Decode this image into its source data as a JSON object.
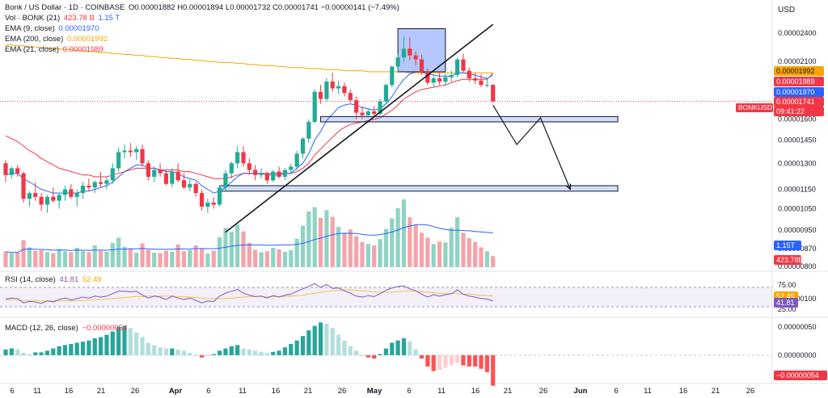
{
  "header": {
    "title": "Bonk / US Dollar · 1D · COINBASE",
    "ohlc": "O0.00001882 H0.00001894 L0.00001732 C0.00001741 −0.00000141 (−7.49%)",
    "vol_label": "Vol · BONK (21)",
    "vol_val1": "423.78 B",
    "vol_val2": "1.15 T",
    "ema9_label": "EMA (9, close)",
    "ema9_val": "0.00001970",
    "ema200_label": "EMA (200, close)",
    "ema200_val": "0.00001992",
    "ema21_label": "EMA (21, close)",
    "ema21_val": "0.00001989",
    "currency": "USD"
  },
  "price_axis": {
    "ticks": [
      "0.00002400",
      "0.00002100",
      "0.00001800",
      "0.00001600",
      "0.00001450",
      "0.00001300",
      "0.00001150",
      "0.00001050",
      "0.00000950",
      "0.00000870",
      "0.00000800"
    ],
    "tags": [
      {
        "text": "0.00001992",
        "color": "#f7a600",
        "name": "ema200-price-tag"
      },
      {
        "text": "0.00001989",
        "color": "#f23645",
        "name": "ema21-price-tag"
      },
      {
        "text": "0.00001970",
        "color": "#2962ff",
        "name": "ema9-price-tag"
      },
      {
        "text": "0.00001741",
        "color": "#f23645",
        "name": "last-price-tag"
      },
      {
        "text": "09:41:22",
        "color": "#f23645",
        "name": "countdown-tag"
      },
      {
        "text": "1.15T",
        "color": "#2962ff",
        "name": "vol-ma-tag"
      },
      {
        "text": "423.78B",
        "color": "#f23645",
        "name": "vol-tag"
      }
    ],
    "symbol_tag": "BONKUSD"
  },
  "rsi": {
    "label": "RSI (14, close)",
    "val1": "41.81",
    "val2": "52.49",
    "ticks": [
      "75.00",
      "25.00"
    ],
    "tags": [
      {
        "text": "52.49",
        "color": "#f7a600"
      },
      {
        "text": "41.81",
        "color": "#7e57c2"
      }
    ]
  },
  "macd": {
    "label": "MACD (12, 26, close)",
    "val": "−0.00000054",
    "ticks": [
      "0.00000100",
      "0.00000050",
      "0.00000000"
    ],
    "tag": "−0.00000054"
  },
  "time_axis": {
    "labels": [
      "6",
      "11",
      "16",
      "21",
      "26",
      "Apr",
      "6",
      "11",
      "16",
      "21",
      "26",
      "May",
      "6",
      "11",
      "16",
      "21",
      "26",
      "Jun",
      "6",
      "11",
      "16",
      "21",
      "26"
    ]
  },
  "chart_data": {
    "type": "candlestick",
    "title": "Bonk / US Dollar · 1D · COINBASE",
    "currency": "USD",
    "candles": [
      [
        1.3e-05,
        1.32e-05,
        1.19e-05,
        1.23e-05
      ],
      [
        1.23e-05,
        1.28e-05,
        1.21e-05,
        1.27e-05
      ],
      [
        1.27e-05,
        1.29e-05,
        1.22e-05,
        1.24e-05
      ],
      [
        1.24e-05,
        1.25e-05,
        1.08e-05,
        1.1e-05
      ],
      [
        1.1e-05,
        1.14e-05,
        1.06e-05,
        1.13e-05
      ],
      [
        1.13e-05,
        1.19e-05,
        1.09e-05,
        1.11e-05
      ],
      [
        1.11e-05,
        1.13e-05,
        1.04e-05,
        1.07e-05
      ],
      [
        1.07e-05,
        1.12e-05,
        1.03e-05,
        1.11e-05
      ],
      [
        1.11e-05,
        1.16e-05,
        1.08e-05,
        1.09e-05
      ],
      [
        1.09e-05,
        1.13e-05,
        1.05e-05,
        1.12e-05
      ],
      [
        1.12e-05,
        1.17e-05,
        1.09e-05,
        1.15e-05
      ],
      [
        1.15e-05,
        1.18e-05,
        1.1e-05,
        1.11e-05
      ],
      [
        1.11e-05,
        1.15e-05,
        1.06e-05,
        1.13e-05
      ],
      [
        1.13e-05,
        1.19e-05,
        1.1e-05,
        1.17e-05
      ],
      [
        1.17e-05,
        1.21e-05,
        1.14e-05,
        1.16e-05
      ],
      [
        1.16e-05,
        1.2e-05,
        1.13e-05,
        1.19e-05
      ],
      [
        1.19e-05,
        1.25e-05,
        1.16e-05,
        1.18e-05
      ],
      [
        1.18e-05,
        1.22e-05,
        1.15e-05,
        1.2e-05
      ],
      [
        1.2e-05,
        1.3e-05,
        1.18e-05,
        1.27e-05
      ],
      [
        1.27e-05,
        1.4e-05,
        1.25e-05,
        1.37e-05
      ],
      [
        1.37e-05,
        1.42e-05,
        1.33e-05,
        1.38e-05
      ],
      [
        1.38e-05,
        1.43e-05,
        1.34e-05,
        1.37e-05
      ],
      [
        1.37e-05,
        1.41e-05,
        1.32e-05,
        1.39e-05
      ],
      [
        1.39e-05,
        1.42e-05,
        1.28e-05,
        1.3e-05
      ],
      [
        1.3e-05,
        1.32e-05,
        1.2e-05,
        1.22e-05
      ],
      [
        1.22e-05,
        1.28e-05,
        1.19e-05,
        1.26e-05
      ],
      [
        1.26e-05,
        1.3e-05,
        1.22e-05,
        1.24e-05
      ],
      [
        1.24e-05,
        1.26e-05,
        1.17e-05,
        1.18e-05
      ],
      [
        1.18e-05,
        1.27e-05,
        1.16e-05,
        1.25e-05
      ],
      [
        1.25e-05,
        1.3e-05,
        1.19e-05,
        1.2e-05
      ],
      [
        1.2e-05,
        1.24e-05,
        1.15e-05,
        1.16e-05
      ],
      [
        1.16e-05,
        1.21e-05,
        1.14e-05,
        1.18e-05
      ],
      [
        1.18e-05,
        1.19e-05,
        1.11e-05,
        1.13e-05
      ],
      [
        1.13e-05,
        1.15e-05,
        1.04e-05,
        1.06e-05
      ],
      [
        1.06e-05,
        1.1e-05,
        1.03e-05,
        1.08e-05
      ],
      [
        1.08e-05,
        1.11e-05,
        1.05e-05,
        1.07e-05
      ],
      [
        1.07e-05,
        1.17e-05,
        1.06e-05,
        1.16e-05
      ],
      [
        1.16e-05,
        1.26e-05,
        1.14e-05,
        1.24e-05
      ],
      [
        1.24e-05,
        1.31e-05,
        1.21e-05,
        1.3e-05
      ],
      [
        1.3e-05,
        1.41e-05,
        1.27e-05,
        1.37e-05
      ],
      [
        1.37e-05,
        1.41e-05,
        1.28e-05,
        1.3e-05
      ],
      [
        1.3e-05,
        1.33e-05,
        1.23e-05,
        1.26e-05
      ],
      [
        1.26e-05,
        1.29e-05,
        1.2e-05,
        1.23e-05
      ],
      [
        1.23e-05,
        1.27e-05,
        1.21e-05,
        1.24e-05
      ],
      [
        1.24e-05,
        1.25e-05,
        1.18e-05,
        1.2e-05
      ],
      [
        1.2e-05,
        1.26e-05,
        1.19e-05,
        1.25e-05
      ],
      [
        1.25e-05,
        1.28e-05,
        1.21e-05,
        1.22e-05
      ],
      [
        1.22e-05,
        1.27e-05,
        1.2e-05,
        1.26e-05
      ],
      [
        1.26e-05,
        1.3e-05,
        1.24e-05,
        1.28e-05
      ],
      [
        1.28e-05,
        1.38e-05,
        1.26e-05,
        1.36e-05
      ],
      [
        1.36e-05,
        1.47e-05,
        1.33e-05,
        1.46e-05
      ],
      [
        1.46e-05,
        1.6e-05,
        1.43e-05,
        1.58e-05
      ],
      [
        1.58e-05,
        1.84e-05,
        1.57e-05,
        1.82e-05
      ],
      [
        1.82e-05,
        1.88e-05,
        1.72e-05,
        1.76e-05
      ],
      [
        1.76e-05,
        1.94e-05,
        1.74e-05,
        1.91e-05
      ],
      [
        1.91e-05,
        1.99e-05,
        1.82e-05,
        1.85e-05
      ],
      [
        1.85e-05,
        1.92e-05,
        1.8e-05,
        1.87e-05
      ],
      [
        1.87e-05,
        1.9e-05,
        1.78e-05,
        1.81e-05
      ],
      [
        1.81e-05,
        1.84e-05,
        1.73e-05,
        1.75e-05
      ],
      [
        1.75e-05,
        1.78e-05,
        1.6e-05,
        1.65e-05
      ],
      [
        1.65e-05,
        1.7e-05,
        1.6e-05,
        1.63e-05
      ],
      [
        1.63e-05,
        1.68e-05,
        1.61e-05,
        1.66e-05
      ],
      [
        1.66e-05,
        1.7e-05,
        1.62e-05,
        1.64e-05
      ],
      [
        1.64e-05,
        1.76e-05,
        1.63e-05,
        1.74e-05
      ],
      [
        1.74e-05,
        1.89e-05,
        1.72e-05,
        1.88e-05
      ],
      [
        1.88e-05,
        2.06e-05,
        1.86e-05,
        2.05e-05
      ],
      [
        2.05e-05,
        2.18e-05,
        1.99e-05,
        2.14e-05
      ],
      [
        2.14e-05,
        2.36e-05,
        2.09e-05,
        2.23e-05
      ],
      [
        2.23e-05,
        2.35e-05,
        2.11e-05,
        2.16e-05
      ],
      [
        2.16e-05,
        2.2e-05,
        2.06e-05,
        2.12e-05
      ],
      [
        2.12e-05,
        2.17e-05,
        1.97e-05,
        2e-05
      ],
      [
        2e-05,
        2.03e-05,
        1.88e-05,
        1.9e-05
      ],
      [
        1.9e-05,
        1.97e-05,
        1.86e-05,
        1.94e-05
      ],
      [
        1.94e-05,
        1.99e-05,
        1.88e-05,
        1.91e-05
      ],
      [
        1.91e-05,
        1.98e-05,
        1.87e-05,
        1.95e-05
      ],
      [
        1.95e-05,
        2.01e-05,
        1.91e-05,
        1.97e-05
      ],
      [
        1.97e-05,
        2.14e-05,
        1.95e-05,
        2.12e-05
      ],
      [
        2.12e-05,
        2.18e-05,
        1.99e-05,
        2.01e-05
      ],
      [
        2.01e-05,
        2.04e-05,
        1.91e-05,
        1.94e-05
      ],
      [
        1.94e-05,
        1.99e-05,
        1.89e-05,
        1.92e-05
      ],
      [
        1.92e-05,
        1.98e-05,
        1.86e-05,
        1.88e-05
      ],
      [
        1.88e-05,
        1.94e-05,
        1.86e-05,
        1.88e-05
      ],
      [
        1.88e-05,
        1.89e-05,
        1.73e-05,
        1.74e-05
      ]
    ],
    "volume_bars": [
      3.2,
      2.9,
      3.0,
      5.6,
      4.1,
      3.4,
      3.5,
      3.1,
      2.9,
      3.8,
      3.3,
      3.1,
      4.0,
      3.3,
      3.1,
      4.5,
      3.4,
      3.2,
      5.0,
      6.1,
      4.2,
      3.9,
      3.0,
      4.9,
      3.6,
      3.0,
      2.9,
      3.4,
      3.2,
      4.7,
      3.3,
      3.6,
      4.5,
      3.9,
      2.8,
      3.4,
      6.2,
      8.1,
      7.3,
      8.8,
      7.4,
      5.0,
      3.6,
      3.1,
      3.3,
      4.0,
      3.7,
      3.2,
      3.5,
      5.9,
      8.6,
      11.5,
      12.4,
      10.2,
      11.8,
      10.4,
      8.3,
      7.1,
      7.8,
      6.4,
      5.2,
      4.8,
      4.5,
      5.8,
      7.9,
      10.1,
      12.2,
      14.0,
      10.3,
      8.7,
      7.1,
      6.1,
      4.8,
      5.3,
      5.1,
      8.2,
      10.3,
      7.1,
      6.0,
      5.2,
      4.1,
      3.3,
      2.3
    ],
    "ema9": [
      1.23e-05,
      1.24e-05,
      1.24e-05,
      1.21e-05,
      1.19e-05,
      1.17e-05,
      1.15e-05,
      1.14e-05,
      1.13e-05,
      1.13e-05,
      1.13e-05,
      1.13e-05,
      1.13e-05,
      1.14e-05,
      1.14e-05,
      1.15e-05,
      1.16e-05,
      1.17e-05,
      1.19e-05,
      1.22e-05,
      1.25e-05,
      1.27e-05,
      1.29e-05,
      1.29e-05,
      1.27e-05,
      1.27e-05,
      1.26e-05,
      1.25e-05,
      1.25e-05,
      1.24e-05,
      1.22e-05,
      1.21e-05,
      1.2e-05,
      1.17e-05,
      1.15e-05,
      1.13e-05,
      1.14e-05,
      1.16e-05,
      1.19e-05,
      1.22e-05,
      1.24e-05,
      1.24e-05,
      1.24e-05,
      1.24e-05,
      1.23e-05,
      1.23e-05,
      1.23e-05,
      1.24e-05,
      1.24e-05,
      1.27e-05,
      1.3e-05,
      1.36e-05,
      1.45e-05,
      1.51e-05,
      1.59e-05,
      1.64e-05,
      1.69e-05,
      1.71e-05,
      1.72e-05,
      1.71e-05,
      1.69e-05,
      1.68e-05,
      1.67e-05,
      1.68e-05,
      1.72e-05,
      1.78e-05,
      1.86e-05,
      1.93e-05,
      1.98e-05,
      2e-05,
      2e-05,
      1.98e-05,
      1.97e-05,
      1.96e-05,
      1.96e-05,
      1.96e-05,
      1.99e-05,
      1.99e-05,
      1.98e-05,
      1.97e-05,
      1.95e-05,
      1.94e-05,
      1.97e-05
    ],
    "ema21": [
      1.48e-05,
      1.46e-05,
      1.44e-05,
      1.41e-05,
      1.38e-05,
      1.36e-05,
      1.33e-05,
      1.31e-05,
      1.29e-05,
      1.27e-05,
      1.26e-05,
      1.25e-05,
      1.24e-05,
      1.23e-05,
      1.23e-05,
      1.22e-05,
      1.22e-05,
      1.22e-05,
      1.23e-05,
      1.24e-05,
      1.25e-05,
      1.26e-05,
      1.27e-05,
      1.27e-05,
      1.27e-05,
      1.27e-05,
      1.26e-05,
      1.26e-05,
      1.26e-05,
      1.26e-05,
      1.25e-05,
      1.25e-05,
      1.24e-05,
      1.23e-05,
      1.22e-05,
      1.21e-05,
      1.21e-05,
      1.21e-05,
      1.22e-05,
      1.23e-05,
      1.24e-05,
      1.24e-05,
      1.24e-05,
      1.24e-05,
      1.24e-05,
      1.24e-05,
      1.24e-05,
      1.24e-05,
      1.24e-05,
      1.25e-05,
      1.27e-05,
      1.3e-05,
      1.35e-05,
      1.39e-05,
      1.43e-05,
      1.47e-05,
      1.51e-05,
      1.54e-05,
      1.56e-05,
      1.57e-05,
      1.58e-05,
      1.59e-05,
      1.6e-05,
      1.61e-05,
      1.64e-05,
      1.67e-05,
      1.71e-05,
      1.76e-05,
      1.79e-05,
      1.82e-05,
      1.84e-05,
      1.85e-05,
      1.86e-05,
      1.87e-05,
      1.88e-05,
      1.9e-05,
      1.92e-05,
      1.93e-05,
      1.93e-05,
      1.93e-05,
      1.93e-05,
      1.93e-05,
      1.99e-05
    ],
    "ema200": [
      2.27e-05,
      2.27e-05,
      2.26e-05,
      2.26e-05,
      2.25e-05,
      2.25e-05,
      2.24e-05,
      2.24e-05,
      2.23e-05,
      2.23e-05,
      2.22e-05,
      2.22e-05,
      2.21e-05,
      2.21e-05,
      2.2e-05,
      2.2e-05,
      2.19e-05,
      2.19e-05,
      2.18e-05,
      2.18e-05,
      2.17e-05,
      2.17e-05,
      2.16e-05,
      2.16e-05,
      2.15e-05,
      2.15e-05,
      2.14e-05,
      2.14e-05,
      2.13e-05,
      2.13e-05,
      2.12e-05,
      2.12e-05,
      2.11e-05,
      2.11e-05,
      2.1e-05,
      2.1e-05,
      2.09e-05,
      2.09e-05,
      2.09e-05,
      2.08e-05,
      2.08e-05,
      2.07e-05,
      2.07e-05,
      2.06e-05,
      2.06e-05,
      2.06e-05,
      2.05e-05,
      2.05e-05,
      2.04e-05,
      2.04e-05,
      2.04e-05,
      2.03e-05,
      2.03e-05,
      2.03e-05,
      2.02e-05,
      2.02e-05,
      2.02e-05,
      2.01e-05,
      2.01e-05,
      2.01e-05,
      2.01e-05,
      2e-05,
      2e-05,
      2e-05,
      2e-05,
      2e-05,
      2e-05,
      2e-05,
      1.99e-05,
      1.99e-05,
      1.99e-05,
      1.99e-05,
      1.99e-05,
      1.99e-05,
      1.99e-05,
      1.99e-05,
      1.99e-05,
      1.99e-05,
      1.99e-05,
      1.99e-05,
      1.99e-05,
      1.99e-05,
      1.99e-05
    ],
    "rsi14": [
      46,
      48,
      47,
      38,
      41,
      40,
      37,
      42,
      40,
      45,
      48,
      44,
      47,
      50,
      48,
      52,
      50,
      52,
      57,
      62,
      62,
      61,
      62,
      54,
      48,
      52,
      50,
      45,
      52,
      48,
      45,
      48,
      43,
      38,
      42,
      41,
      52,
      58,
      62,
      66,
      58,
      54,
      51,
      52,
      48,
      53,
      50,
      54,
      56,
      62,
      67,
      72,
      78,
      70,
      76,
      68,
      69,
      63,
      58,
      52,
      50,
      53,
      51,
      57,
      64,
      69,
      72,
      73,
      67,
      63,
      56,
      50,
      55,
      52,
      55,
      57,
      65,
      56,
      52,
      50,
      47,
      46,
      41.81
    ],
    "rsi_ma": [
      44,
      44,
      44,
      43,
      43,
      43,
      42,
      42,
      42,
      42,
      42,
      42,
      43,
      43,
      44,
      45,
      45,
      46,
      47,
      48,
      49,
      50,
      51,
      51,
      52,
      52,
      52,
      52,
      52,
      51,
      51,
      50,
      49,
      48,
      47,
      47,
      47,
      47,
      48,
      49,
      50,
      51,
      51,
      51,
      51,
      51,
      51,
      51,
      52,
      53,
      54,
      56,
      58,
      60,
      62,
      63,
      64,
      65,
      65,
      64,
      63,
      62,
      61,
      60,
      60,
      60,
      61,
      62,
      62,
      62,
      61,
      60,
      59,
      58,
      57,
      57,
      57,
      56,
      56,
      55,
      54,
      53,
      52.49
    ],
    "macd_hist": [
      1e-07,
      1.2e-07,
      1e-07,
      4e-08,
      2e-08,
      5e-08,
      5e-08,
      8e-08,
      1.2e-07,
      1.6e-07,
      1.8e-07,
      2e-07,
      2.2e-07,
      2.4e-07,
      2.6e-07,
      3e-07,
      3.2e-07,
      3.6e-07,
      4.2e-07,
      5e-07,
      5.2e-07,
      4.8e-07,
      4e-07,
      3.2e-07,
      2.2e-07,
      1.8e-07,
      1.4e-07,
      1.2e-07,
      1.2e-07,
      1e-07,
      8e-08,
      4e-08,
      0.0,
      -4e-08,
      -2e-08,
      2e-08,
      8e-08,
      1.2e-07,
      1.6e-07,
      1.8e-07,
      1.2e-07,
      1e-07,
      8e-08,
      6e-08,
      4e-08,
      6e-08,
      8e-08,
      1.4e-07,
      2e-07,
      2.6e-07,
      3.4e-07,
      4.4e-07,
      5.2e-07,
      5.8e-07,
      5.6e-07,
      4.8e-07,
      3.6e-07,
      2.6e-07,
      1.6e-07,
      8e-08,
      0.0,
      -4e-08,
      -6e-08,
      2e-08,
      1.2e-07,
      2.2e-07,
      2.6e-07,
      3e-07,
      2.4e-07,
      1e-07,
      -6e-08,
      -2e-07,
      -2.8e-07,
      -2.6e-07,
      -2.2e-07,
      -1.8e-07,
      -1.4e-07,
      -1.8e-07,
      -2e-07,
      -2e-07,
      -2.4e-07,
      -3e-07,
      -5.4e-07
    ],
    "ylim_log": [
      8e-06,
      2.7e-05
    ],
    "rsi_levels": [
      30,
      70
    ],
    "annotations": {
      "trendline": {
        "from": [
          37,
          9.4e-06
        ],
        "to": [
          82,
          2.5e-05
        ]
      },
      "box": {
        "from": [
          66,
          2e-05
        ],
        "to": [
          74,
          2.45e-05
        ]
      },
      "support_zones": [
        {
          "from": [
            53,
            1.62e-05
          ],
          "to": [
            103,
            1.58e-05
          ],
          "y_low": 1.58e-05,
          "y_high": 1.62e-05
        },
        {
          "from": [
            36,
            1.17e-05
          ],
          "to": [
            103,
            1.14e-05
          ],
          "y_low": 1.14e-05,
          "y_high": 1.17e-05
        }
      ],
      "projection_path": [
        [
          82,
          1.71e-05
        ],
        [
          86,
          1.42e-05
        ],
        [
          90,
          1.61e-05
        ],
        [
          95,
          1.15e-05
        ]
      ]
    }
  }
}
